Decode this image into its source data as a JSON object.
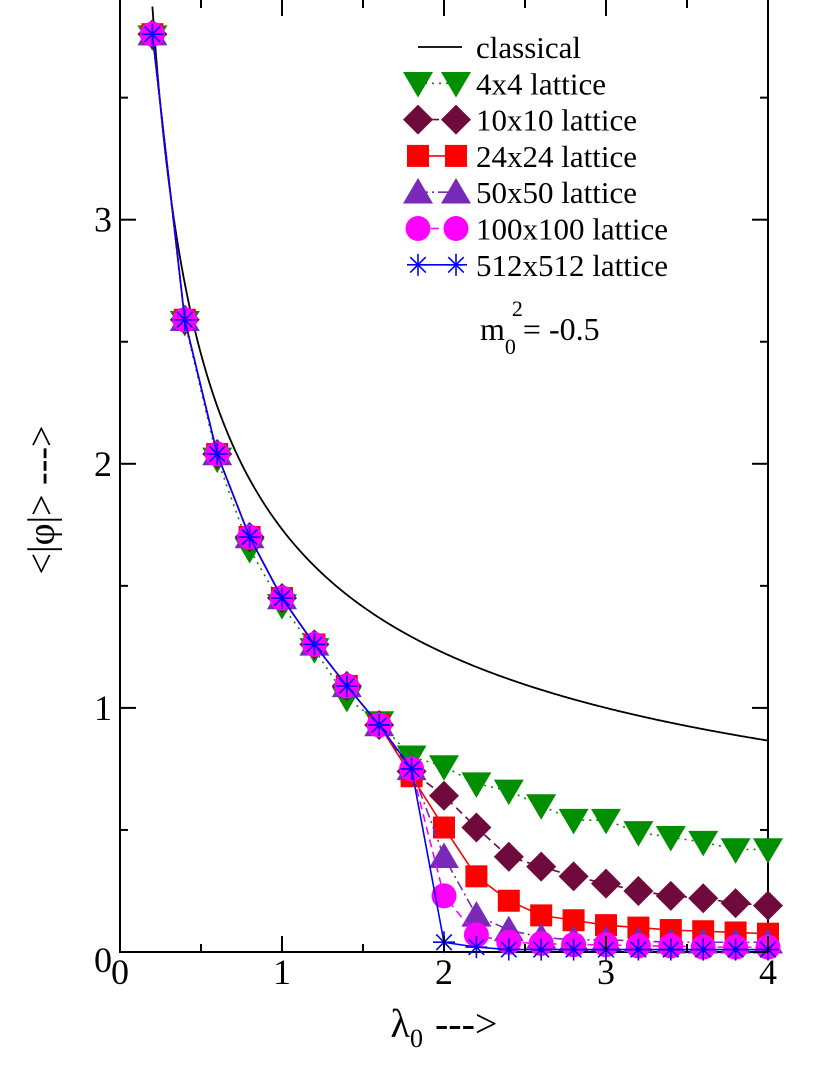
{
  "chart_data": {
    "type": "line",
    "title": "",
    "xlabel": "λ0 --->",
    "ylabel": "<|φ|> --->",
    "xlabel_main": "λ",
    "xlabel_sub": "0",
    "xlabel_arrow": "--->",
    "ylabel_text": "<|φ|> --->",
    "xlim": [
      0,
      4
    ],
    "ylim": [
      0,
      3.9
    ],
    "x_ticks": [
      0,
      1,
      2,
      3,
      4
    ],
    "x_tick_labels": [
      "0",
      "1",
      "2",
      "3",
      "4"
    ],
    "y_ticks": [
      0,
      1,
      2,
      3
    ],
    "y_tick_labels": [
      "0",
      "1",
      "2",
      "3"
    ],
    "grid": false,
    "legend_position": "top-right",
    "annotation": {
      "base": "m",
      "sub": "0",
      "sup": "2",
      "rest": "= -0.5"
    },
    "classical": {
      "name": "classical",
      "color": "#000000",
      "x_start": 0.2,
      "x_end": 4,
      "formula": "sqrt(3/lambda)"
    },
    "series": [
      {
        "name": "4x4 lattice",
        "marker": "triangle-down",
        "color": "#008f00",
        "line": "dotted",
        "x": [
          0.2,
          0.4,
          0.6,
          0.8,
          1.0,
          1.2,
          1.4,
          1.6,
          1.8,
          2.0,
          2.2,
          2.4,
          2.6,
          2.8,
          3.0,
          3.2,
          3.4,
          3.6,
          3.8,
          4.0
        ],
        "y": [
          3.75,
          2.58,
          2.02,
          1.65,
          1.42,
          1.24,
          1.04,
          0.94,
          0.8,
          0.76,
          0.69,
          0.66,
          0.6,
          0.54,
          0.54,
          0.49,
          0.47,
          0.45,
          0.42,
          0.42
        ]
      },
      {
        "name": "10x10 lattice",
        "marker": "diamond",
        "color": "#6e0a3c",
        "line": "dashed",
        "x": [
          0.2,
          0.4,
          0.6,
          0.8,
          1.0,
          1.2,
          1.4,
          1.6,
          1.8,
          2.0,
          2.2,
          2.4,
          2.6,
          2.8,
          3.0,
          3.2,
          3.4,
          3.6,
          3.8,
          4.0
        ],
        "y": [
          3.76,
          2.59,
          2.04,
          1.7,
          1.45,
          1.26,
          1.09,
          0.93,
          0.74,
          0.64,
          0.51,
          0.39,
          0.35,
          0.31,
          0.28,
          0.25,
          0.23,
          0.22,
          0.2,
          0.19
        ]
      },
      {
        "name": "24x24 lattice",
        "marker": "square",
        "color": "#ff0000",
        "line": "solid",
        "x": [
          0.2,
          0.4,
          0.6,
          0.8,
          1.0,
          1.2,
          1.4,
          1.6,
          1.8,
          2.0,
          2.2,
          2.4,
          2.6,
          2.8,
          3.0,
          3.2,
          3.4,
          3.6,
          3.8,
          4.0
        ],
        "y": [
          3.76,
          2.59,
          2.04,
          1.7,
          1.45,
          1.26,
          1.09,
          0.93,
          0.72,
          0.51,
          0.31,
          0.21,
          0.15,
          0.13,
          0.11,
          0.1,
          0.09,
          0.085,
          0.08,
          0.075
        ]
      },
      {
        "name": "50x50 lattice",
        "marker": "triangle-up",
        "color": "#7a2ab8",
        "line": "dashdot",
        "x": [
          0.2,
          0.4,
          0.6,
          0.8,
          1.0,
          1.2,
          1.4,
          1.6,
          1.8,
          2.0,
          2.2,
          2.4,
          2.6,
          2.8,
          3.0,
          3.2,
          3.4,
          3.6,
          3.8,
          4.0
        ],
        "y": [
          3.76,
          2.59,
          2.04,
          1.7,
          1.45,
          1.26,
          1.09,
          0.93,
          0.75,
          0.39,
          0.15,
          0.09,
          0.06,
          0.05,
          0.05,
          0.045,
          0.04,
          0.04,
          0.04,
          0.04
        ]
      },
      {
        "name": "100x100 lattice",
        "marker": "circle",
        "color": "#ff00ff",
        "line": "dashed",
        "x": [
          0.2,
          0.4,
          0.6,
          0.8,
          1.0,
          1.2,
          1.4,
          1.6,
          1.8,
          2.0,
          2.2,
          2.4,
          2.6,
          2.8,
          3.0,
          3.2,
          3.4,
          3.6,
          3.8,
          4.0
        ],
        "y": [
          3.76,
          2.59,
          2.04,
          1.7,
          1.45,
          1.26,
          1.09,
          0.93,
          0.75,
          0.23,
          0.07,
          0.04,
          0.035,
          0.03,
          0.03,
          0.025,
          0.025,
          0.02,
          0.02,
          0.02
        ]
      },
      {
        "name": "512x512 lattice",
        "marker": "star",
        "color": "#0000ff",
        "line": "solid",
        "x": [
          0.2,
          0.4,
          0.6,
          0.8,
          1.0,
          1.2,
          1.4,
          1.6,
          1.8,
          2.0,
          2.2,
          2.4,
          2.6,
          2.8,
          3.0,
          3.2,
          3.4,
          3.6,
          3.8,
          4.0
        ],
        "y": [
          3.76,
          2.59,
          2.04,
          1.7,
          1.45,
          1.26,
          1.09,
          0.93,
          0.75,
          0.04,
          0.02,
          0.01,
          0.01,
          0.01,
          0.01,
          0.01,
          0.01,
          0.01,
          0.01,
          0.01
        ]
      }
    ]
  }
}
